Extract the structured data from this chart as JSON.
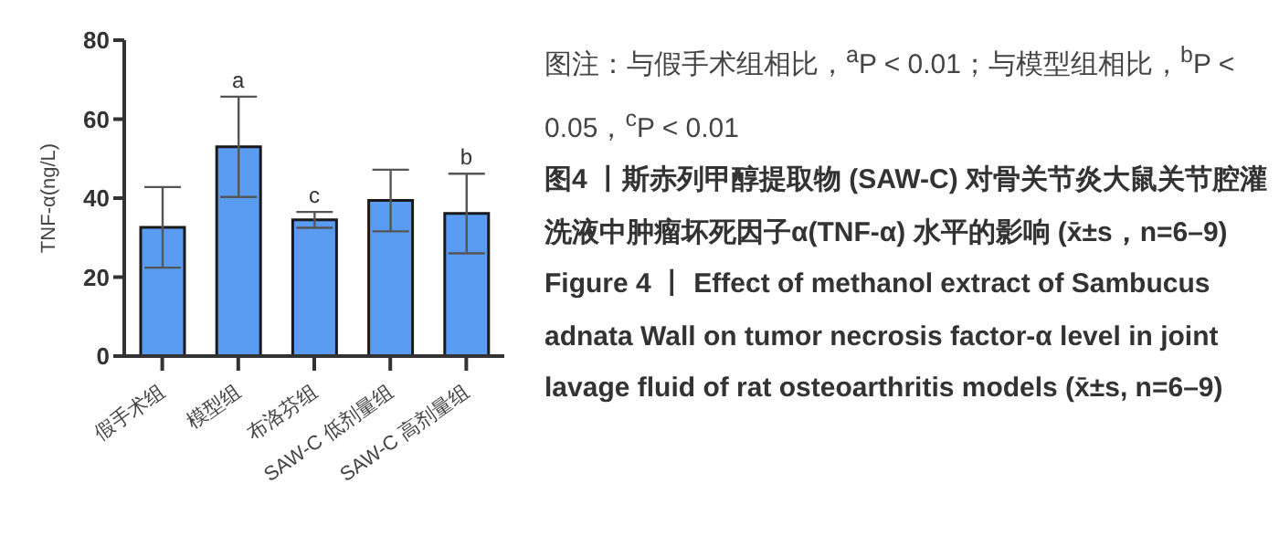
{
  "chart_data": {
    "type": "bar",
    "title": "图4 丨斯赤列甲醇提取物 (SAW-C) 对骨关节炎大鼠关节腔灌洗液中肿瘤坏死因子α(TNF-α) 水平的影响 (x̄±s，n=6–9)",
    "subtitle": "Figure 4 丨 Effect of methanol extract of Sambucus adnata Wall on tumor necrosis factor-α level in joint lavage fluid of rat osteoarthritis models (x̄±s, n=6–9)",
    "ylabel": "TNF-α(ng/L)",
    "categories": [
      "假手术组",
      "模型组",
      "布洛芬组",
      "SAW-C 低剂量组",
      "SAW-C 高剂量组"
    ],
    "values": [
      32.6,
      53,
      34.5,
      39.4,
      36.1
    ],
    "errors": [
      10.2,
      12.7,
      2,
      7.8,
      10.1
    ],
    "color": "#5a9cf2",
    "ylim": [
      0,
      80
    ],
    "yticks": [
      0,
      20,
      40,
      60,
      80
    ],
    "grid": false,
    "legend": false,
    "annotations": [
      "图注：与假手术组相比，$^{a}$P < 0.01；与模型组相比，$^{b}$P < 0.05，$^{c}$P < 0.01",
      {
        "text": "a",
        "x": "模型组",
        "y": 65.7
      },
      {
        "text": "c",
        "x": "布洛芬组",
        "y": 36.5
      },
      {
        "text": "b",
        "x": "SAW-C 高剂量组",
        "y": 46.2
      }
    ]
  }
}
